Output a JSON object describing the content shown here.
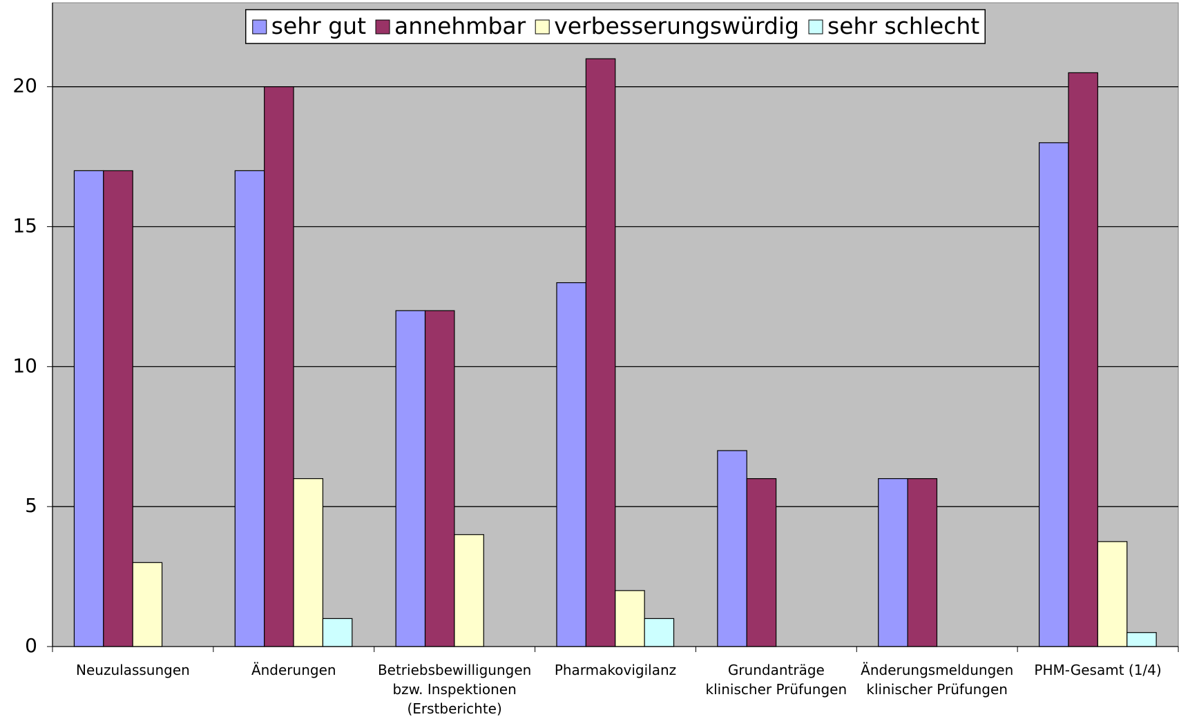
{
  "chart_data": {
    "type": "bar",
    "categories": [
      "Neuzulassungen",
      "Änderungen",
      "Betriebsbewilligungen\nbzw. Inspektionen\n(Erstberichte)",
      "Pharmakovigilanz",
      "Grundanträge\nklinischer Prüfungen",
      "Änderungsmeldungen\nklinischer Prüfungen",
      "PHM-Gesamt (1/4)"
    ],
    "series": [
      {
        "name": "sehr gut",
        "color": "#9999ff",
        "values": [
          17,
          17,
          12,
          13,
          7,
          6,
          18
        ]
      },
      {
        "name": "annehmbar",
        "color": "#993366",
        "values": [
          17,
          20,
          12,
          21,
          6,
          6,
          20.5
        ]
      },
      {
        "name": "verbesserungswürdig",
        "color": "#ffffcc",
        "values": [
          3,
          6,
          4,
          2,
          0,
          0,
          3.75
        ]
      },
      {
        "name": "sehr schlecht",
        "color": "#ccffff",
        "values": [
          0,
          1,
          0,
          1,
          0,
          0,
          0.5
        ]
      }
    ],
    "ylim": [
      0,
      23
    ],
    "yticks": [
      0,
      5,
      10,
      15,
      20
    ],
    "grid": true,
    "legend": "top"
  }
}
